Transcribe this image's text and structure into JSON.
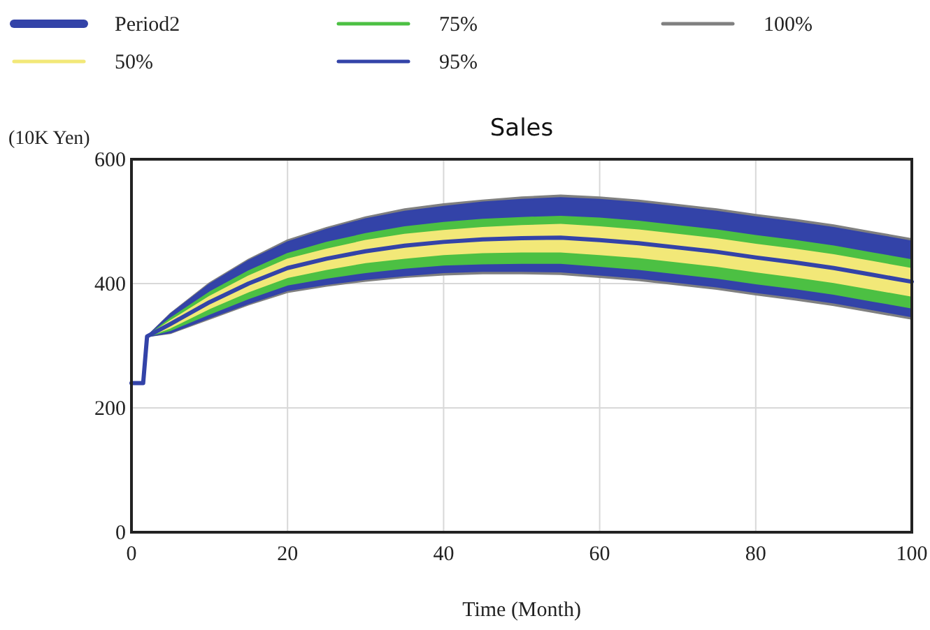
{
  "chart_data": {
    "type": "line",
    "title": "Sales",
    "xlabel": "Time (Month)",
    "ylabel": "(10K Yen)",
    "xlim": [
      0,
      100
    ],
    "xticks": [
      0,
      20,
      40,
      60,
      80,
      100
    ],
    "ylim": [
      0,
      600
    ],
    "yticks": [
      0,
      200,
      400,
      600
    ],
    "grid": true,
    "legend": "top",
    "x": [
      0,
      1.5,
      2,
      5,
      10,
      15,
      20,
      25,
      30,
      35,
      40,
      45,
      50,
      55,
      60,
      65,
      70,
      75,
      80,
      85,
      90,
      95,
      100
    ],
    "series": [
      {
        "name": "Period2",
        "type": "line",
        "color": "#3343a8",
        "values": [
          240,
          240,
          315,
          335,
          370,
          400,
          425,
          440,
          452,
          461,
          467,
          471,
          473,
          474,
          470,
          465,
          458,
          451,
          442,
          434,
          425,
          414,
          403
        ]
      },
      {
        "name": "50%",
        "type": "line",
        "color": "#f2e878",
        "values": [
          null,
          null,
          null,
          null,
          null,
          null,
          null,
          null,
          null,
          null,
          null,
          null,
          null,
          null,
          null,
          null,
          null,
          null,
          null,
          null,
          null,
          null,
          null
        ],
        "lower": [
          240,
          240,
          315,
          329,
          360,
          387,
          410,
          423,
          434,
          441,
          447,
          450,
          451,
          451,
          447,
          442,
          435,
          428,
          419,
          411,
          402,
          391,
          380
        ],
        "upper": [
          240,
          240,
          315,
          340,
          379,
          412,
          439,
          455,
          469,
          479,
          485,
          490,
          493,
          495,
          491,
          486,
          479,
          472,
          463,
          455,
          446,
          435,
          424
        ]
      },
      {
        "name": "75%",
        "type": "line",
        "color": "#4cc043",
        "values": [
          null,
          null,
          null,
          null,
          null,
          null,
          null,
          null,
          null,
          null,
          null,
          null,
          null,
          null,
          null,
          null,
          null,
          null,
          null,
          null,
          null,
          null,
          null
        ],
        "lower": [
          240,
          240,
          315,
          325,
          351,
          376,
          398,
          409,
          418,
          425,
          430,
          432,
          433,
          433,
          428,
          423,
          416,
          409,
          400,
          392,
          383,
          372,
          361
        ],
        "upper": [
          240,
          240,
          315,
          344,
          386,
          420,
          448,
          466,
          480,
          491,
          498,
          503,
          506,
          508,
          505,
          500,
          493,
          486,
          477,
          469,
          460,
          449,
          438
        ]
      },
      {
        "name": "95%",
        "type": "line",
        "color": "#3343a8",
        "values": [
          null,
          null,
          null,
          null,
          null,
          null,
          null,
          null,
          null,
          null,
          null,
          null,
          null,
          null,
          null,
          null,
          null,
          null,
          null,
          null,
          null,
          null,
          null
        ],
        "lower": [
          240,
          240,
          315,
          321,
          345,
          368,
          389,
          399,
          407,
          413,
          418,
          420,
          420,
          419,
          414,
          409,
          402,
          395,
          386,
          378,
          369,
          358,
          347
        ],
        "upper": [
          240,
          240,
          315,
          351,
          399,
          437,
          467,
          487,
          504,
          516,
          524,
          531,
          535,
          538,
          535,
          530,
          523,
          516,
          507,
          499,
          490,
          479,
          468
        ]
      },
      {
        "name": "100%",
        "type": "line",
        "color": "#808080",
        "values": [
          null,
          null,
          null,
          null,
          null,
          null,
          null,
          null,
          null,
          null,
          null,
          null,
          null,
          null,
          null,
          null,
          null,
          null,
          null,
          null,
          null,
          null,
          null
        ],
        "lower": [
          240,
          240,
          315,
          320,
          343,
          366,
          386,
          396,
          404,
          410,
          414,
          416,
          416,
          415,
          410,
          405,
          398,
          391,
          382,
          374,
          365,
          354,
          343
        ],
        "upper": [
          240,
          240,
          315,
          352,
          401,
          439,
          470,
          490,
          507,
          520,
          528,
          534,
          539,
          542,
          539,
          534,
          527,
          520,
          511,
          503,
          494,
          483,
          472
        ]
      }
    ]
  }
}
